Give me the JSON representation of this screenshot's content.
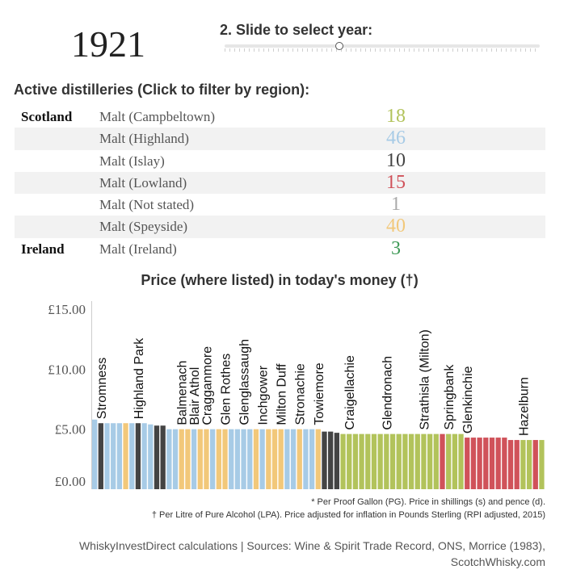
{
  "header": {
    "year": "1921",
    "slider_label": "2. Slide to select year:",
    "slider_value": 0.365
  },
  "active": {
    "title": "Active distilleries (Click to filter by region):",
    "rows": [
      {
        "country": "Scotland",
        "label": "Malt (Campbeltown)",
        "count": "18",
        "color": "#b2c35b"
      },
      {
        "country": "",
        "label": "Malt (Highland)",
        "count": "46",
        "color": "#a7cbe6"
      },
      {
        "country": "",
        "label": "Malt (Islay)",
        "count": "10",
        "color": "#444444"
      },
      {
        "country": "",
        "label": "Malt (Lowland)",
        "count": "15",
        "color": "#d0525a"
      },
      {
        "country": "",
        "label": "Malt (Not stated)",
        "count": "1",
        "color": "#aaaaaa"
      },
      {
        "country": "",
        "label": "Malt (Speyside)",
        "count": "40",
        "color": "#f2c87a"
      },
      {
        "country": "Ireland",
        "label": "Malt (Ireland)",
        "count": "3",
        "color": "#3f9a57"
      }
    ]
  },
  "price": {
    "title": "Price (where listed) in today's money (†)"
  },
  "notes": {
    "pg": "* Per Proof Gallon (PG). Price in shillings (s) and pence (d).",
    "lpa": "† Per Litre of Pure Alcohol (LPA). Price adjusted for inflation in Pounds Sterling (RPI adjusted, 2015)"
  },
  "source": "WhiskyInvestDirect calculations | Sources: Wine & Spirit Trade Record, ONS, Morrice (1983), ScotchWhisky.com",
  "chart_data": {
    "type": "bar",
    "title": "Price (where listed) in today's money (†)",
    "ylim": [
      0,
      15
    ],
    "yticks": [
      "£0.00",
      "£5.00",
      "£10.00",
      "£15.00"
    ],
    "colors": {
      "H": "#a7cbe6",
      "S": "#f2c87a",
      "I": "#444444",
      "C": "#b2c35b",
      "L": "#d0525a"
    },
    "bars": [
      {
        "v": 5.8,
        "r": "H",
        "label": ""
      },
      {
        "v": 5.5,
        "r": "I",
        "label": "Stromness"
      },
      {
        "v": 5.5,
        "r": "H",
        "label": ""
      },
      {
        "v": 5.5,
        "r": "H",
        "label": ""
      },
      {
        "v": 5.5,
        "r": "H",
        "label": ""
      },
      {
        "v": 5.5,
        "r": "S",
        "label": ""
      },
      {
        "v": 5.5,
        "r": "H",
        "label": ""
      },
      {
        "v": 5.5,
        "r": "I",
        "label": "Highland Park"
      },
      {
        "v": 5.5,
        "r": "H",
        "label": ""
      },
      {
        "v": 5.4,
        "r": "H",
        "label": ""
      },
      {
        "v": 5.3,
        "r": "I",
        "label": ""
      },
      {
        "v": 5.3,
        "r": "I",
        "label": ""
      },
      {
        "v": 5.0,
        "r": "H",
        "label": ""
      },
      {
        "v": 5.0,
        "r": "H",
        "label": ""
      },
      {
        "v": 5.0,
        "r": "S",
        "label": "Balmenach"
      },
      {
        "v": 5.0,
        "r": "S",
        "label": ""
      },
      {
        "v": 5.0,
        "r": "H",
        "label": "Blair Athol"
      },
      {
        "v": 5.0,
        "r": "S",
        "label": ""
      },
      {
        "v": 5.0,
        "r": "S",
        "label": "Cragganmore"
      },
      {
        "v": 5.0,
        "r": "H",
        "label": ""
      },
      {
        "v": 5.0,
        "r": "S",
        "label": ""
      },
      {
        "v": 5.0,
        "r": "S",
        "label": "Glen Rothes"
      },
      {
        "v": 5.0,
        "r": "H",
        "label": ""
      },
      {
        "v": 5.0,
        "r": "H",
        "label": ""
      },
      {
        "v": 5.0,
        "r": "H",
        "label": "Glenglassaugh"
      },
      {
        "v": 5.0,
        "r": "H",
        "label": ""
      },
      {
        "v": 5.0,
        "r": "S",
        "label": ""
      },
      {
        "v": 5.0,
        "r": "H",
        "label": "Inchgower"
      },
      {
        "v": 5.0,
        "r": "S",
        "label": ""
      },
      {
        "v": 5.0,
        "r": "S",
        "label": ""
      },
      {
        "v": 5.0,
        "r": "S",
        "label": "Milton Duff"
      },
      {
        "v": 5.0,
        "r": "H",
        "label": ""
      },
      {
        "v": 5.0,
        "r": "H",
        "label": ""
      },
      {
        "v": 5.0,
        "r": "S",
        "label": "Stronachie"
      },
      {
        "v": 5.0,
        "r": "H",
        "label": ""
      },
      {
        "v": 5.0,
        "r": "H",
        "label": ""
      },
      {
        "v": 5.0,
        "r": "S",
        "label": "Towiemore"
      },
      {
        "v": 4.8,
        "r": "I",
        "label": ""
      },
      {
        "v": 4.8,
        "r": "I",
        "label": ""
      },
      {
        "v": 4.7,
        "r": "I",
        "label": ""
      },
      {
        "v": 4.6,
        "r": "C",
        "label": ""
      },
      {
        "v": 4.6,
        "r": "C",
        "label": "Craigellachie"
      },
      {
        "v": 4.6,
        "r": "C",
        "label": ""
      },
      {
        "v": 4.6,
        "r": "C",
        "label": ""
      },
      {
        "v": 4.6,
        "r": "C",
        "label": ""
      },
      {
        "v": 4.6,
        "r": "C",
        "label": ""
      },
      {
        "v": 4.6,
        "r": "C",
        "label": ""
      },
      {
        "v": 4.6,
        "r": "C",
        "label": "Glendronach"
      },
      {
        "v": 4.6,
        "r": "C",
        "label": ""
      },
      {
        "v": 4.6,
        "r": "C",
        "label": ""
      },
      {
        "v": 4.6,
        "r": "C",
        "label": ""
      },
      {
        "v": 4.6,
        "r": "C",
        "label": ""
      },
      {
        "v": 4.6,
        "r": "C",
        "label": ""
      },
      {
        "v": 4.6,
        "r": "C",
        "label": "Strathisla (Milton)"
      },
      {
        "v": 4.6,
        "r": "C",
        "label": ""
      },
      {
        "v": 4.6,
        "r": "C",
        "label": ""
      },
      {
        "v": 4.6,
        "r": "L",
        "label": ""
      },
      {
        "v": 4.6,
        "r": "C",
        "label": "Springbank"
      },
      {
        "v": 4.6,
        "r": "C",
        "label": ""
      },
      {
        "v": 4.6,
        "r": "C",
        "label": ""
      },
      {
        "v": 4.3,
        "r": "L",
        "label": "Glenkinchie"
      },
      {
        "v": 4.3,
        "r": "L",
        "label": ""
      },
      {
        "v": 4.3,
        "r": "L",
        "label": ""
      },
      {
        "v": 4.3,
        "r": "L",
        "label": ""
      },
      {
        "v": 4.3,
        "r": "L",
        "label": ""
      },
      {
        "v": 4.3,
        "r": "L",
        "label": ""
      },
      {
        "v": 4.3,
        "r": "L",
        "label": ""
      },
      {
        "v": 4.1,
        "r": "L",
        "label": ""
      },
      {
        "v": 4.1,
        "r": "L",
        "label": ""
      },
      {
        "v": 4.1,
        "r": "C",
        "label": "Hazelburn"
      },
      {
        "v": 4.1,
        "r": "C",
        "label": ""
      },
      {
        "v": 4.1,
        "r": "L",
        "label": ""
      },
      {
        "v": 4.1,
        "r": "C",
        "label": ""
      }
    ]
  }
}
